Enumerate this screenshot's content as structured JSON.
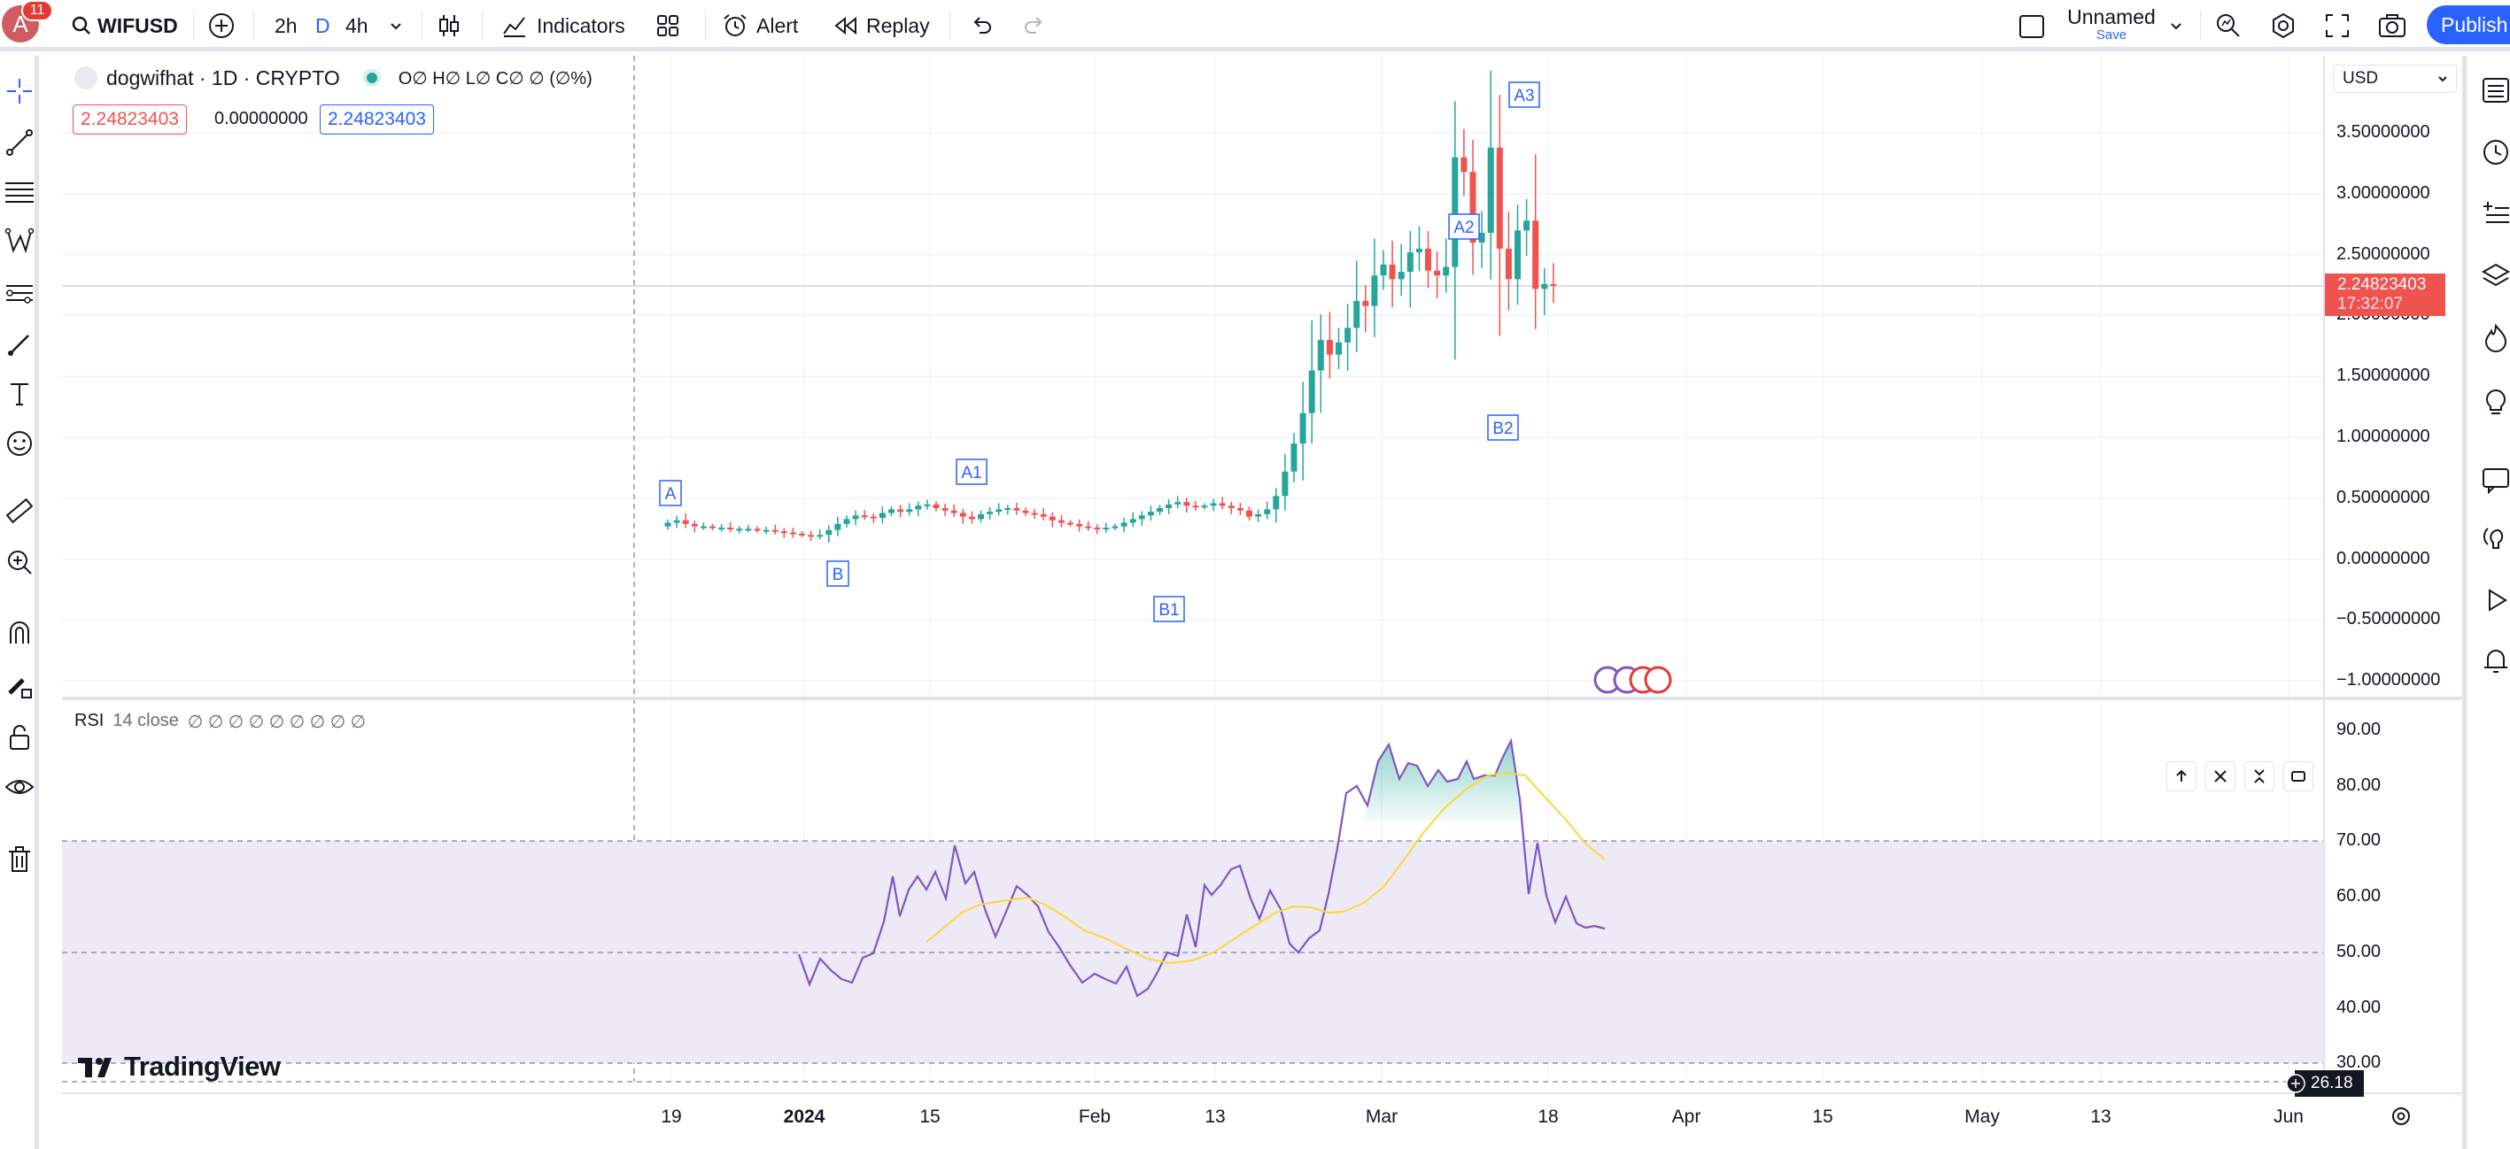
{
  "topbar": {
    "avatar_letter": "A",
    "notifications": "11",
    "symbol": "WIFUSD",
    "intervals": [
      "2h",
      "D",
      "4h"
    ],
    "indicators_label": "Indicators",
    "alert_label": "Alert",
    "replay_label": "Replay",
    "layout_name": "Unnamed",
    "save_label": "Save",
    "publish_label": "Publish"
  },
  "legend": {
    "title": "dogwifhat · 1D · CRYPTO",
    "ohlc": "O∅ H∅ L∅ C∅ ∅ (∅%)",
    "bid": "2.24823403",
    "spread": "0.00000000",
    "ask": "2.24823403"
  },
  "price_axis": {
    "currency": "USD",
    "ticks": [
      "3.50000000",
      "3.00000000",
      "2.50000000",
      "2.00000000",
      "1.50000000",
      "1.00000000",
      "0.50000000",
      "0.00000000",
      "−0.50000000",
      "−1.00000000"
    ],
    "last_price": "2.24823403",
    "countdown": "17:32:07"
  },
  "rsi": {
    "title": "RSI",
    "params": "14 close",
    "values": "∅ ∅ ∅ ∅ ∅ ∅ ∅ ∅ ∅",
    "ticks": [
      "90.00",
      "80.00",
      "70.00",
      "60.00",
      "50.00",
      "40.00",
      "30.00"
    ],
    "cursor_value": "26.18"
  },
  "time_axis": {
    "ticks": [
      "19",
      "2024",
      "15",
      "Feb",
      "13",
      "Mar",
      "18",
      "Apr",
      "15",
      "May",
      "13",
      "Jun"
    ]
  },
  "watermark": "TradingView",
  "pattern_labels": [
    "A",
    "B",
    "A1",
    "B1",
    "A2",
    "B2",
    "A3"
  ],
  "colors": {
    "up": "#26a69a",
    "down": "#ef5350",
    "accent": "#2962ff",
    "rsi_line": "#7e57c2",
    "rsi_ma": "#fdd835",
    "rsi_band": "#ede9f7"
  }
}
